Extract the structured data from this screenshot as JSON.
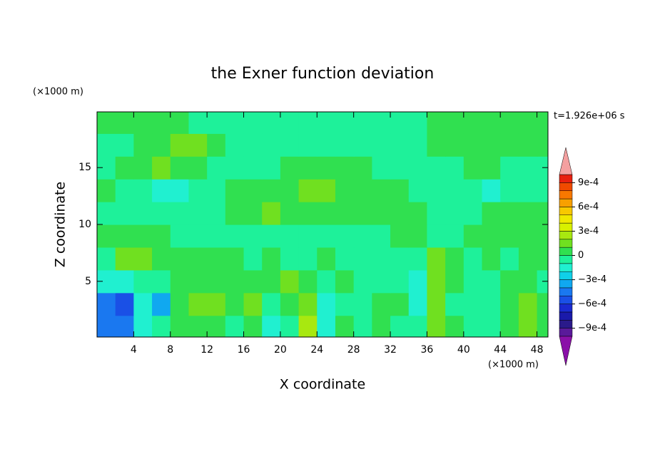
{
  "chart_data": {
    "type": "contour",
    "title": "the Exner function deviation",
    "xlabel": "X coordinate",
    "ylabel": "Z coordinate",
    "x_unit": "(×1000 m)",
    "y_unit": "(×1000 m)",
    "annotation": "t=1.926e+06 s",
    "xlim": [
      0,
      49.2
    ],
    "ylim": [
      0.1,
      19.9
    ],
    "xticks": [
      4,
      8,
      12,
      16,
      20,
      24,
      28,
      32,
      36,
      40,
      44,
      48
    ],
    "yticks": [
      5,
      10,
      15
    ],
    "x": [
      1,
      3,
      5,
      7,
      9,
      11,
      13,
      15,
      17,
      19,
      21,
      23,
      25,
      27,
      29,
      31,
      33,
      35,
      37,
      39,
      41,
      43,
      45,
      47,
      49
    ],
    "z": [
      1,
      3,
      5,
      7,
      9,
      11,
      13,
      15,
      17,
      19
    ],
    "values": [
      [
        -0.00045,
        -0.00045,
        -0.00015,
        -5e-05,
        5e-05,
        5e-05,
        5e-05,
        -5e-05,
        5e-05,
        -0.00015,
        -5e-05,
        0.00025,
        -0.00015,
        5e-05,
        -5e-05,
        5e-05,
        -5e-05,
        -5e-05,
        0.00015,
        5e-05,
        -5e-05,
        -5e-05,
        5e-05,
        0.00015,
        5e-05
      ],
      [
        -0.00045,
        -0.00055,
        -0.00015,
        -0.00035,
        5e-05,
        0.00015,
        0.00015,
        5e-05,
        0.00015,
        -5e-05,
        5e-05,
        0.00015,
        -0.00015,
        -5e-05,
        -5e-05,
        5e-05,
        5e-05,
        -0.00015,
        0.00015,
        -5e-05,
        -5e-05,
        -5e-05,
        5e-05,
        0.00015,
        5e-05
      ],
      [
        -0.00015,
        -0.00015,
        -5e-05,
        -5e-05,
        5e-05,
        5e-05,
        5e-05,
        5e-05,
        5e-05,
        5e-05,
        0.00015,
        5e-05,
        -5e-05,
        5e-05,
        -5e-05,
        -5e-05,
        -5e-05,
        -0.00015,
        0.00015,
        5e-05,
        -5e-05,
        -5e-05,
        5e-05,
        5e-05,
        -5e-05
      ],
      [
        -5e-05,
        0.00015,
        0.00015,
        5e-05,
        5e-05,
        5e-05,
        5e-05,
        5e-05,
        -5e-05,
        5e-05,
        -5e-05,
        -5e-05,
        5e-05,
        -5e-05,
        -5e-05,
        -5e-05,
        -5e-05,
        -5e-05,
        0.00015,
        5e-05,
        -5e-05,
        5e-05,
        -5e-05,
        5e-05,
        5e-05
      ],
      [
        5e-05,
        5e-05,
        5e-05,
        5e-05,
        -5e-05,
        -5e-05,
        -5e-05,
        -5e-05,
        -5e-05,
        -5e-05,
        -5e-05,
        -5e-05,
        -5e-05,
        -5e-05,
        -5e-05,
        -5e-05,
        5e-05,
        5e-05,
        -5e-05,
        -5e-05,
        5e-05,
        5e-05,
        5e-05,
        5e-05,
        5e-05
      ],
      [
        -5e-05,
        -5e-05,
        -5e-05,
        -5e-05,
        -5e-05,
        -5e-05,
        -5e-05,
        5e-05,
        5e-05,
        0.00015,
        5e-05,
        5e-05,
        5e-05,
        5e-05,
        5e-05,
        5e-05,
        5e-05,
        5e-05,
        -5e-05,
        -5e-05,
        -5e-05,
        5e-05,
        5e-05,
        5e-05,
        5e-05
      ],
      [
        5e-05,
        -5e-05,
        -5e-05,
        -0.00015,
        -0.00015,
        -5e-05,
        -5e-05,
        5e-05,
        5e-05,
        5e-05,
        5e-05,
        0.00015,
        0.00015,
        5e-05,
        5e-05,
        5e-05,
        5e-05,
        -5e-05,
        -5e-05,
        -5e-05,
        -5e-05,
        -0.00015,
        -5e-05,
        -5e-05,
        -5e-05
      ],
      [
        -5e-05,
        5e-05,
        5e-05,
        0.00015,
        5e-05,
        5e-05,
        -5e-05,
        -5e-05,
        -5e-05,
        -5e-05,
        5e-05,
        5e-05,
        5e-05,
        5e-05,
        5e-05,
        -5e-05,
        -5e-05,
        -5e-05,
        -5e-05,
        -5e-05,
        5e-05,
        5e-05,
        -5e-05,
        -5e-05,
        -5e-05
      ],
      [
        -5e-05,
        -5e-05,
        5e-05,
        5e-05,
        0.00015,
        0.00015,
        5e-05,
        -5e-05,
        -5e-05,
        -5e-05,
        -5e-05,
        -5e-05,
        -5e-05,
        -5e-05,
        -5e-05,
        -5e-05,
        -5e-05,
        -5e-05,
        5e-05,
        5e-05,
        5e-05,
        5e-05,
        5e-05,
        5e-05,
        5e-05
      ],
      [
        5e-05,
        5e-05,
        5e-05,
        5e-05,
        5e-05,
        -5e-05,
        -5e-05,
        -5e-05,
        -5e-05,
        -5e-05,
        -5e-05,
        -5e-05,
        -5e-05,
        -5e-05,
        -5e-05,
        -5e-05,
        -5e-05,
        -5e-05,
        5e-05,
        5e-05,
        5e-05,
        5e-05,
        5e-05,
        5e-05,
        5e-05
      ]
    ],
    "colorbar": {
      "levels": [
        -0.001,
        -0.0009,
        -0.0008,
        -0.0007,
        -0.0006,
        -0.0005,
        -0.0004,
        -0.0003,
        -0.0002,
        -0.0001,
        0,
        0.0001,
        0.0002,
        0.0003,
        0.0004,
        0.0005,
        0.0006,
        0.0007,
        0.0008,
        0.0009,
        0.001
      ],
      "colors": [
        "#5a1a9a",
        "#2a1a8a",
        "#1a1aaa",
        "#1a2ad0",
        "#1a50e6",
        "#1a78f0",
        "#10a8f0",
        "#10d0e8",
        "#20f0d0",
        "#1ef19a",
        "#30e050",
        "#70e020",
        "#a8e810",
        "#d8f000",
        "#f0e800",
        "#f8c800",
        "#f8a000",
        "#f87800",
        "#f04a00",
        "#e82010"
      ],
      "under_color": "#8a10a8",
      "over_color": "#f4a0a0",
      "ticks": [
        {
          "value": 0.0009,
          "label": "9e-4"
        },
        {
          "value": 0.0006,
          "label": "6e-4"
        },
        {
          "value": 0.0003,
          "label": "3e-4"
        },
        0,
        {
          "value": -0.0003,
          "label": "−3e-4"
        },
        {
          "value": -0.0006,
          "label": "−6e-4"
        },
        {
          "value": -0.0009,
          "label": "−9e-4"
        }
      ]
    }
  }
}
